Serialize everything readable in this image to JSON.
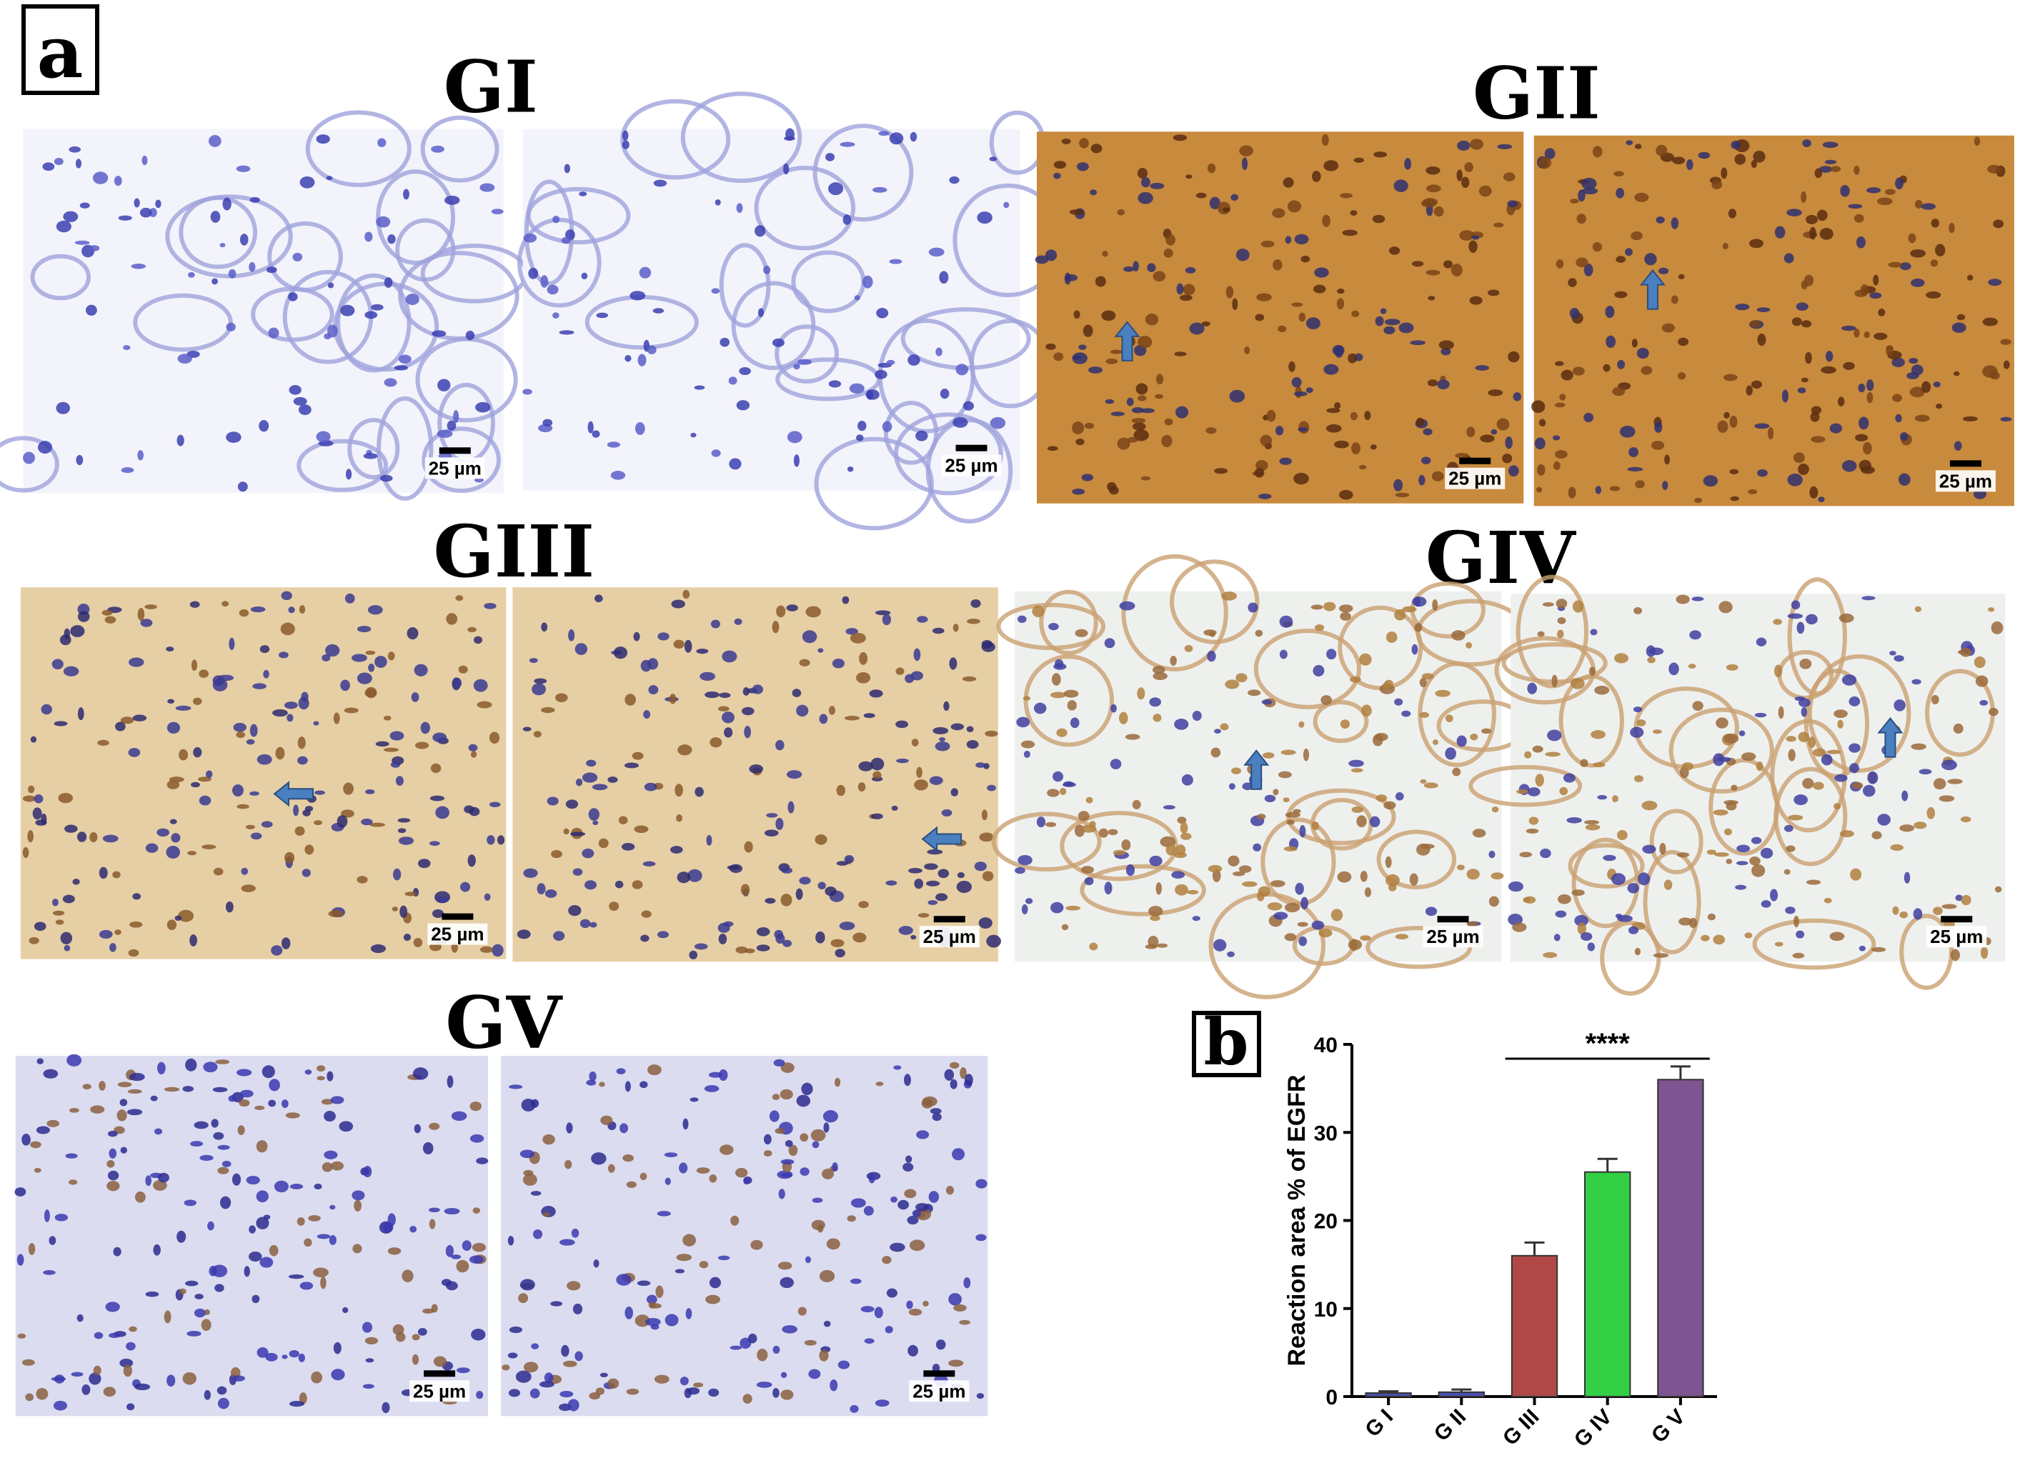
{
  "figure": {
    "panel_a": {
      "label": "a",
      "groups": [
        {
          "title": "GI",
          "scale_bars": [
            "25 µm",
            "25 µm"
          ]
        },
        {
          "title": "GII",
          "scale_bars": [
            "25 µm",
            "25 µm"
          ]
        },
        {
          "title": "GIII",
          "scale_bars": [
            "25 µm",
            "25 µm"
          ]
        },
        {
          "title": "GIV",
          "scale_bars": [
            "25 µm",
            "25 µm"
          ]
        },
        {
          "title": "GV",
          "scale_bars": [
            "25 µm",
            "25 µm"
          ]
        }
      ]
    },
    "panel_b": {
      "label": "b"
    }
  },
  "chart_data": {
    "type": "bar",
    "ylabel": "Reaction area % of EGFR",
    "categories": [
      "G I",
      "G II",
      "G III",
      "G IV",
      "G V"
    ],
    "values": [
      0.4,
      0.5,
      16,
      25.5,
      36
    ],
    "errors": [
      0.2,
      0.3,
      1.5,
      1.5,
      1.5
    ],
    "colors": [
      "#4a4fb0",
      "#4a4fb0",
      "#b04848",
      "#33d046",
      "#7e5590"
    ],
    "ylim": [
      0,
      40
    ],
    "yticks": [
      0,
      10,
      20,
      30,
      40
    ],
    "annotation": "****"
  }
}
